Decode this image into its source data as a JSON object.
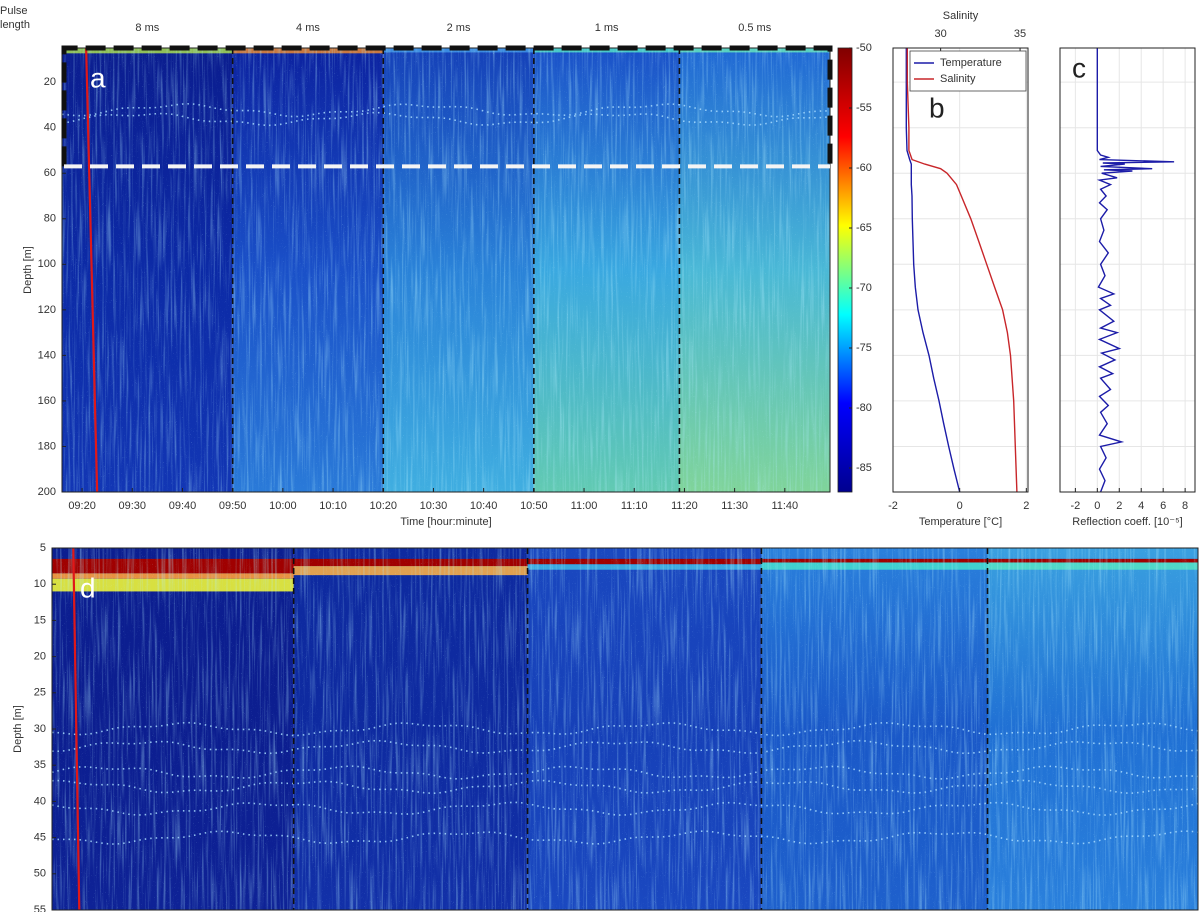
{
  "chart_data": [
    {
      "type": "echogram",
      "panel_label": "a",
      "header_label": "Pulse length",
      "segment_labels": [
        "8 ms",
        "4 ms",
        "2 ms",
        "1 ms",
        "0.5 ms"
      ],
      "segment_bounds": [
        590,
        620,
        650,
        679
      ],
      "xlim": [
        556,
        709
      ],
      "xticks": [
        {
          "value": 560,
          "label": "09:20"
        },
        {
          "value": 570,
          "label": "09:30"
        },
        {
          "value": 580,
          "label": "09:40"
        },
        {
          "value": 590,
          "label": "09:50"
        },
        {
          "value": 600,
          "label": "10:00"
        },
        {
          "value": 610,
          "label": "10:10"
        },
        {
          "value": 620,
          "label": "10:20"
        },
        {
          "value": 630,
          "label": "10:30"
        },
        {
          "value": 640,
          "label": "10:40"
        },
        {
          "value": 650,
          "label": "10:50"
        },
        {
          "value": 660,
          "label": "11:00"
        },
        {
          "value": 670,
          "label": "11:10"
        },
        {
          "value": 680,
          "label": "11:20"
        },
        {
          "value": 690,
          "label": "11:30"
        },
        {
          "value": 700,
          "label": "11:40"
        }
      ],
      "ylim": [
        5,
        200
      ],
      "y_reversed": true,
      "yticks": [
        20,
        40,
        60,
        80,
        100,
        120,
        140,
        160,
        180,
        200
      ],
      "xlabel": "Time [hour:minute]",
      "ylabel": "Depth [m]",
      "cast_time": 563,
      "zoom_box_depth": 57,
      "colorbar": {
        "clim": [
          -87,
          -50
        ],
        "ticks": [
          -50,
          -55,
          -60,
          -65,
          -70,
          -75,
          -80,
          -85
        ],
        "colormap": "jet"
      }
    },
    {
      "type": "line",
      "panel_label": "b",
      "y": [
        5,
        20,
        40,
        50,
        54,
        56,
        58,
        60,
        65,
        70,
        80,
        90,
        100,
        110,
        120,
        130,
        140,
        150,
        160,
        170,
        180,
        190,
        200
      ],
      "series": [
        {
          "name": "Temperature",
          "color": "#1c1ca8",
          "axis": "x",
          "values": [
            -1.6,
            -1.6,
            -1.6,
            -1.58,
            -1.5,
            -1.45,
            -1.45,
            -1.45,
            -1.45,
            -1.43,
            -1.42,
            -1.4,
            -1.38,
            -1.33,
            -1.25,
            -1.1,
            -0.92,
            -0.78,
            -0.62,
            -0.48,
            -0.33,
            -0.17,
            0.0
          ]
        },
        {
          "name": "Salinity",
          "color": "#c8262a",
          "axis": "x2",
          "values": [
            27.9,
            27.9,
            28.0,
            28.0,
            28.2,
            29.0,
            30.0,
            30.4,
            31.0,
            31.3,
            31.9,
            32.4,
            32.9,
            33.4,
            33.9,
            34.2,
            34.4,
            34.5,
            34.6,
            34.65,
            34.7,
            34.75,
            34.8
          ]
        }
      ],
      "xlim": [
        -2,
        2.05
      ],
      "xticks": [
        -2,
        0,
        2
      ],
      "xlabel": "Temperature [°C]",
      "x2lim": [
        27,
        35.5
      ],
      "x2ticks": [
        30,
        35
      ],
      "x2label": "Salinity",
      "ylim": [
        5,
        200
      ],
      "y_reversed": true,
      "yticks": [
        20,
        40,
        60,
        80,
        100,
        120,
        140,
        160,
        180,
        200
      ],
      "grid": true,
      "legend": "upper right"
    },
    {
      "type": "line",
      "panel_label": "c",
      "color": "#1c1ca8",
      "y": [
        5,
        50,
        52,
        53,
        54,
        55,
        55.5,
        56,
        57,
        58,
        58.5,
        59,
        60,
        62,
        63,
        65,
        67,
        70,
        73,
        76,
        80,
        85,
        90,
        95,
        100,
        105,
        110,
        113,
        115,
        118,
        120,
        125,
        128,
        130,
        133,
        137,
        139,
        142,
        145,
        148,
        150,
        155,
        158,
        162,
        165,
        170,
        175,
        178,
        180,
        185,
        190,
        195,
        200
      ],
      "values": [
        0,
        0,
        0.3,
        1,
        0.2,
        7,
        0.5,
        2.5,
        0.3,
        5,
        0.6,
        3.2,
        0.4,
        1.8,
        0.2,
        1.2,
        0.3,
        0.8,
        0.2,
        0.9,
        0.3,
        0.6,
        0.2,
        1.0,
        0.3,
        0.7,
        0.1,
        1.5,
        0.3,
        1.2,
        0.2,
        1.5,
        0.3,
        1.8,
        0.2,
        2.0,
        0.4,
        1.6,
        0.2,
        1.4,
        0.3,
        1.2,
        0.2,
        1.0,
        0.3,
        0.9,
        0.2,
        2.2,
        0.3,
        0.8,
        0.2,
        0.7,
        0.3
      ],
      "xlim": [
        -3.4,
        8.9
      ],
      "xticks": [
        -2,
        0,
        2,
        4,
        6,
        8
      ],
      "xlabel": "Reflection coeff. [10⁻⁵]",
      "ylim": [
        5,
        200
      ],
      "y_reversed": true,
      "yticks": [
        20,
        40,
        60,
        80,
        100,
        120,
        140,
        160,
        180,
        200
      ],
      "grid": true
    },
    {
      "type": "echogram",
      "panel_label": "d",
      "segment_bounds": [
        590,
        620,
        650,
        679
      ],
      "xlim": [
        559,
        706
      ],
      "ylim": [
        5,
        55
      ],
      "y_reversed": true,
      "yticks": [
        5,
        10,
        15,
        20,
        25,
        30,
        35,
        40,
        45,
        50,
        55
      ],
      "ylabel": "Depth [m]",
      "cast_time": 562.5
    }
  ]
}
